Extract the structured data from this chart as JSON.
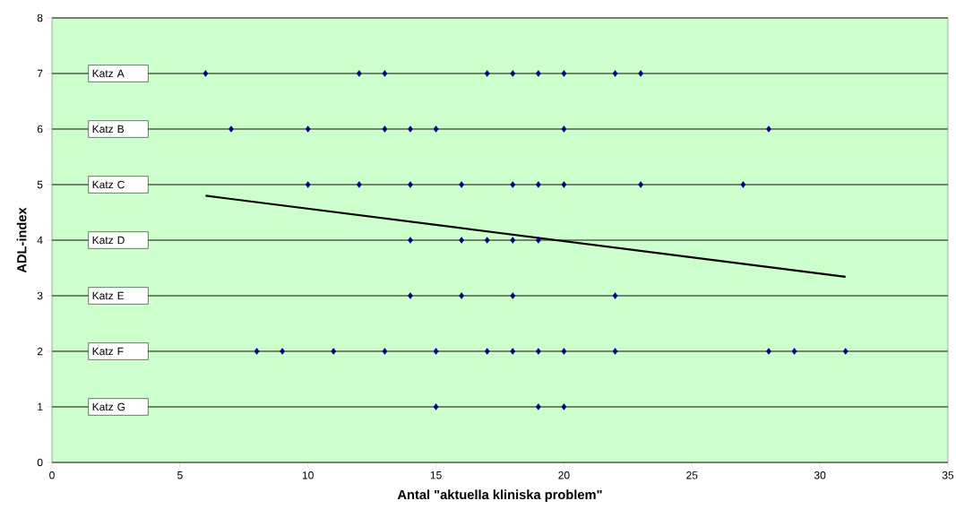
{
  "chart_data": {
    "type": "scatter",
    "xlabel": "Antal \"aktuella kliniska problem\"",
    "ylabel": "ADL-index",
    "xlim": [
      0,
      35
    ],
    "ylim": [
      0,
      8
    ],
    "xticks": [
      0,
      5,
      10,
      15,
      20,
      25,
      30,
      35
    ],
    "yticks": [
      0,
      1,
      2,
      3,
      4,
      5,
      6,
      7,
      8
    ],
    "grid": "y",
    "marker": "diamond",
    "legend": false,
    "series": [
      {
        "color": "#000080",
        "x": [
          6,
          12,
          13,
          17,
          18,
          19,
          20,
          22,
          23,
          7,
          10,
          13,
          14,
          15,
          20,
          28,
          10,
          12,
          14,
          16,
          18,
          19,
          20,
          23,
          27,
          14,
          16,
          17,
          18,
          19,
          14,
          16,
          18,
          22,
          8,
          9,
          11,
          13,
          15,
          17,
          18,
          19,
          20,
          22,
          28,
          29,
          31,
          15,
          19,
          20
        ],
        "values": [
          7,
          7,
          7,
          7,
          7,
          7,
          7,
          7,
          7,
          6,
          6,
          6,
          6,
          6,
          6,
          6,
          5,
          5,
          5,
          5,
          5,
          5,
          5,
          5,
          5,
          4,
          4,
          4,
          4,
          4,
          3,
          3,
          3,
          3,
          2,
          2,
          2,
          2,
          2,
          2,
          2,
          2,
          2,
          2,
          2,
          2,
          2,
          1,
          1,
          1
        ]
      },
      {
        "type": "line",
        "color": "#000000",
        "marker": "none",
        "x": [
          6,
          31
        ],
        "values": [
          4.8,
          3.34
        ]
      }
    ],
    "annotations": [
      "Katz A",
      "Katz B",
      "Katz C",
      "Katz D",
      "Katz E",
      "Katz F",
      "Katz G"
    ]
  }
}
